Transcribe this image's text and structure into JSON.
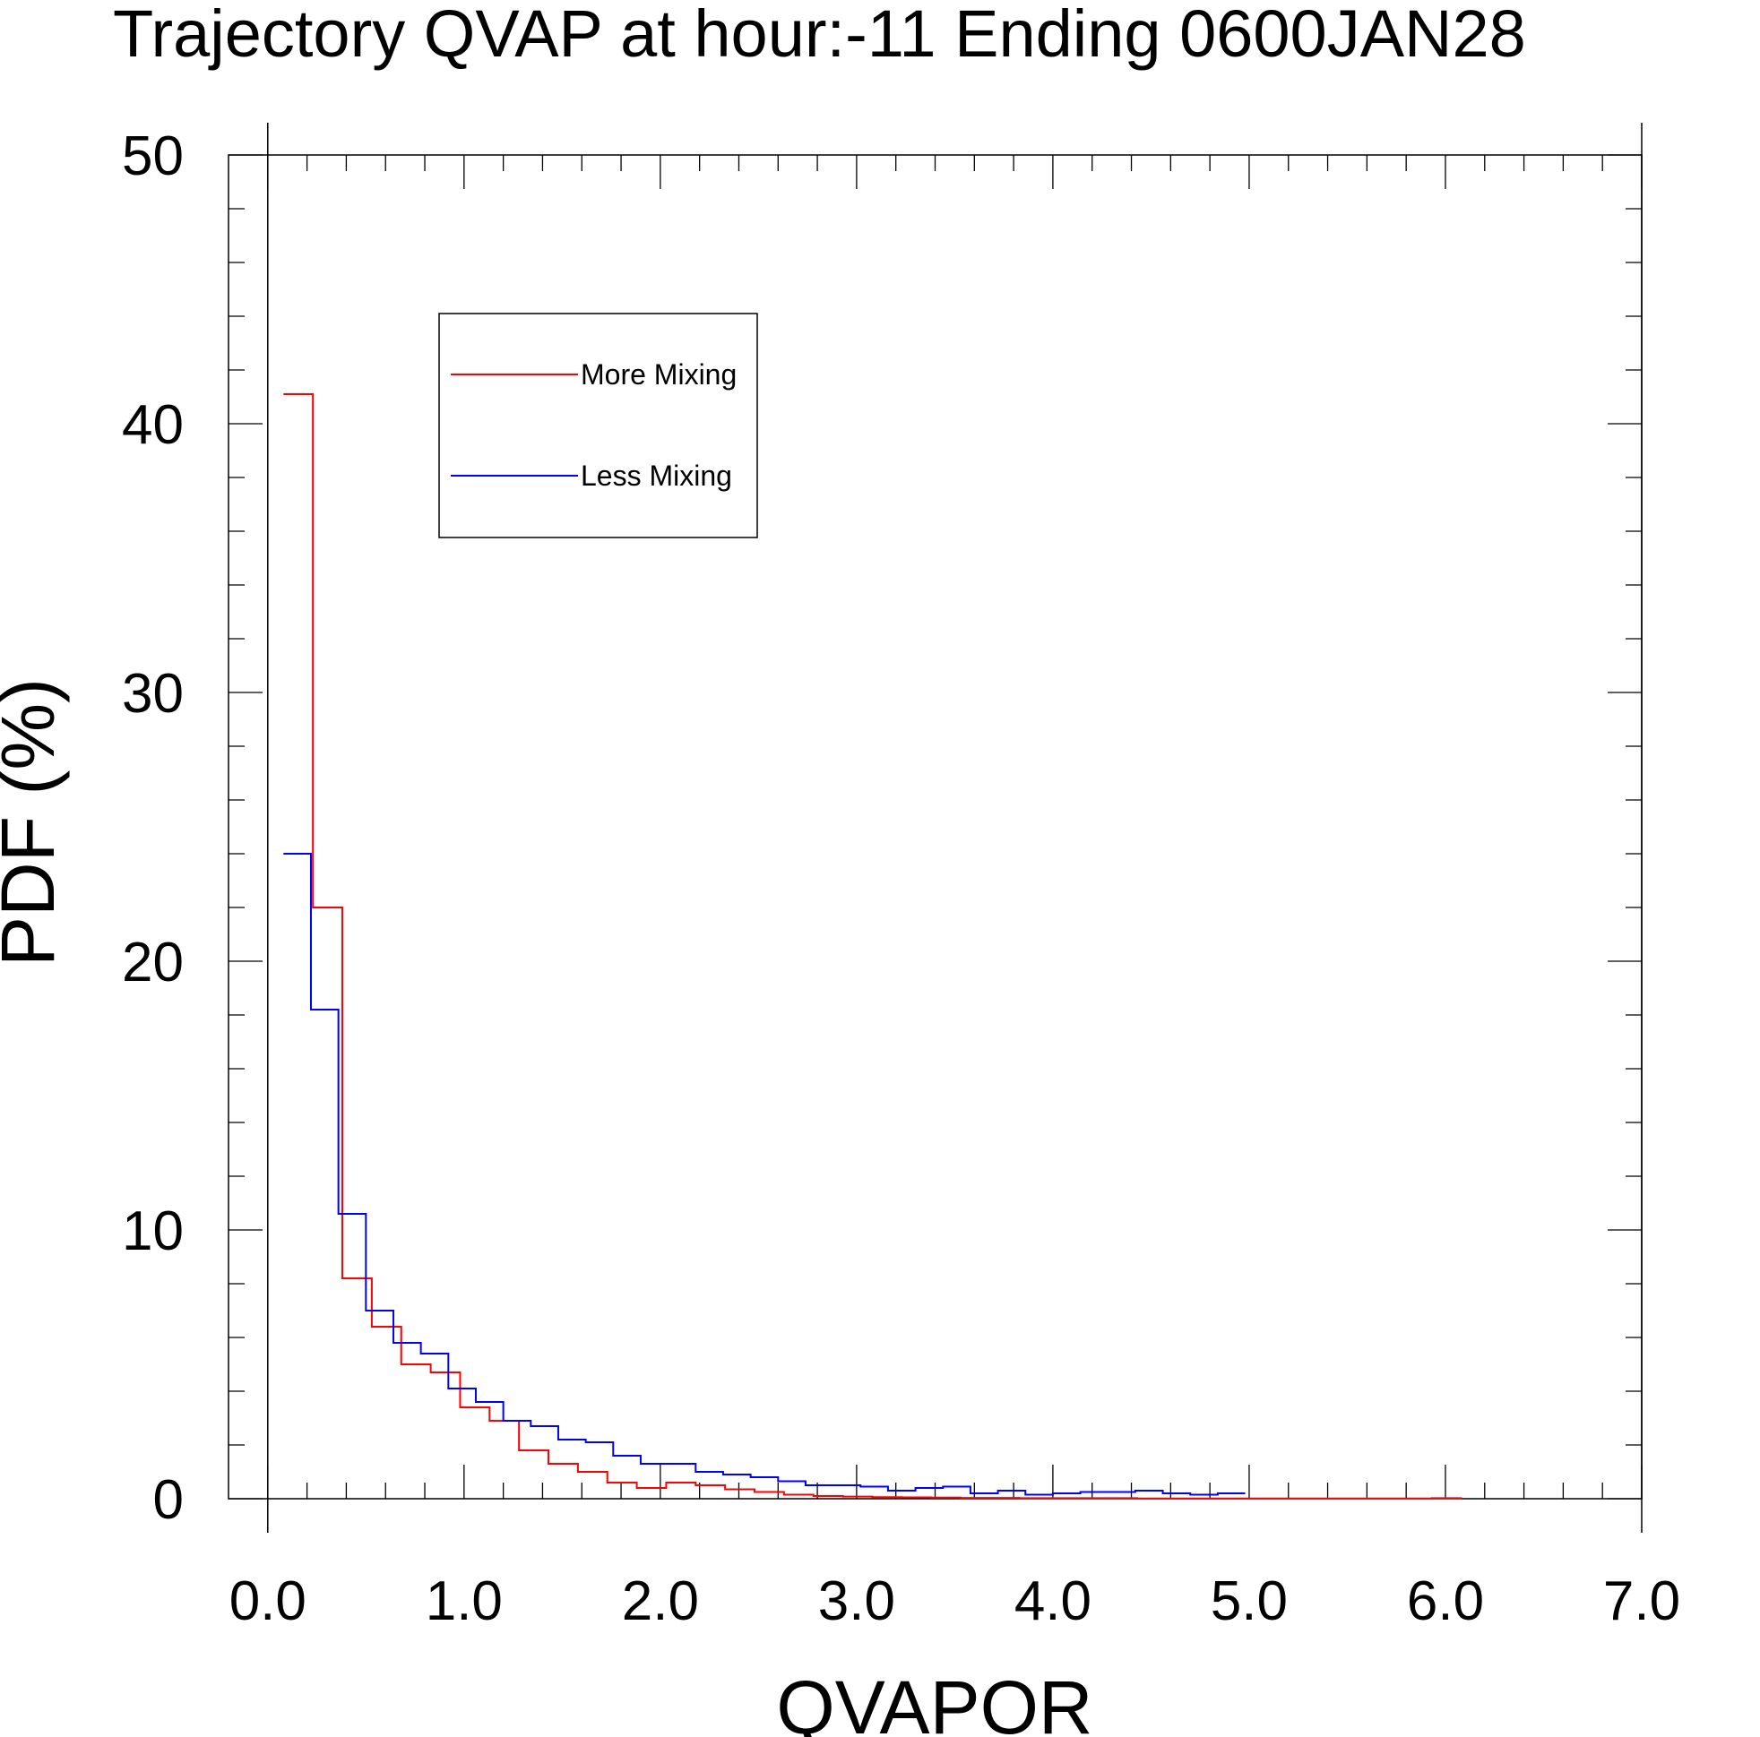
{
  "chart_data": {
    "type": "line",
    "title": "Trajectory QVAP at hour:-11 Ending 0600JAN28",
    "xlabel": "QVAPOR",
    "ylabel": "PDF (%)",
    "xlim": [
      -0.2,
      7.0
    ],
    "ylim": [
      0,
      50
    ],
    "x_tick_values": [
      0,
      1,
      2,
      3,
      4,
      5,
      6,
      7
    ],
    "x_tick_labels": [
      "0.0",
      "1.0",
      "2.0",
      "3.0",
      "4.0",
      "5.0",
      "6.0",
      "7.0"
    ],
    "y_tick_values": [
      0,
      10,
      20,
      30,
      40,
      50
    ],
    "y_tick_labels": [
      "0",
      "10",
      "20",
      "30",
      "40",
      "50"
    ],
    "grid": false,
    "legend_position": "top-left",
    "series": [
      {
        "name": "More Mixing",
        "color": "#ff0000",
        "bin_edges": [
          0.08,
          0.23,
          0.38,
          0.53,
          0.68,
          0.83,
          0.98,
          1.13,
          1.28,
          1.43,
          1.58,
          1.73,
          1.88,
          2.03,
          2.18,
          2.33,
          2.48,
          2.63,
          2.78,
          2.93,
          3.08,
          3.23,
          3.38,
          3.53,
          3.68,
          3.83,
          3.98,
          4.13,
          4.28,
          4.43,
          4.58,
          4.73,
          4.88,
          5.03,
          5.18,
          5.33,
          5.48,
          5.63,
          5.78,
          5.93,
          6.08
        ],
        "values": [
          41.1,
          22.0,
          8.2,
          6.4,
          5.0,
          4.7,
          3.4,
          2.9,
          1.8,
          1.3,
          1.0,
          0.6,
          0.4,
          0.6,
          0.5,
          0.35,
          0.25,
          0.15,
          0.1,
          0.08,
          0.06,
          0.05,
          0.04,
          0.03,
          0.03,
          0.02,
          0.02,
          0.02,
          0.02,
          0.01,
          0.01,
          0.01,
          0.01,
          0.01,
          0.01,
          0.01,
          0.01,
          0.01,
          0.01,
          0.02
        ]
      },
      {
        "name": "Less Mixing",
        "color": "#0000ff",
        "bin_edges": [
          0.08,
          0.22,
          0.36,
          0.5,
          0.64,
          0.78,
          0.92,
          1.06,
          1.2,
          1.34,
          1.48,
          1.62,
          1.76,
          1.9,
          2.04,
          2.18,
          2.32,
          2.46,
          2.6,
          2.74,
          2.88,
          3.02,
          3.16,
          3.3,
          3.44,
          3.58,
          3.72,
          3.86,
          4.0,
          4.14,
          4.28,
          4.42,
          4.56,
          4.7,
          4.84,
          4.98
        ],
        "values": [
          24.0,
          18.2,
          10.6,
          7.0,
          5.8,
          5.4,
          4.1,
          3.6,
          2.9,
          2.7,
          2.2,
          2.1,
          1.6,
          1.3,
          1.3,
          1.0,
          0.9,
          0.8,
          0.65,
          0.5,
          0.5,
          0.45,
          0.3,
          0.4,
          0.45,
          0.2,
          0.3,
          0.15,
          0.2,
          0.25,
          0.25,
          0.3,
          0.2,
          0.15,
          0.2
        ]
      }
    ]
  }
}
